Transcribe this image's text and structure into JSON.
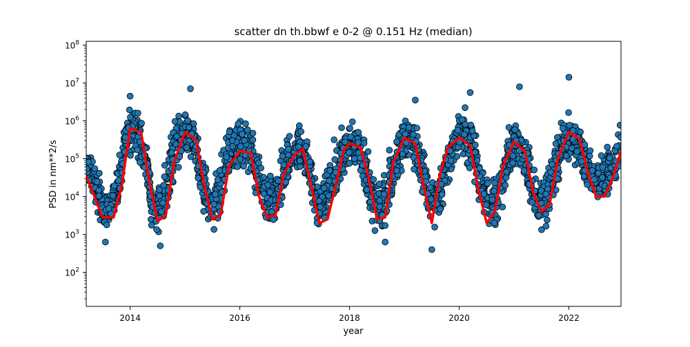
{
  "chart_data": {
    "type": "scatter",
    "title": "scatter dn th.bbwf e 0-2 @ 0.151 Hz (median)",
    "xlabel": "year",
    "ylabel": "PSD in nm**2/s",
    "xlim": [
      2013.2,
      2022.95
    ],
    "ylim_log10": [
      1.1,
      8.1
    ],
    "yscale": "log",
    "grid": false,
    "x_ticks": [
      {
        "value": 2014,
        "label": "2014"
      },
      {
        "value": 2016,
        "label": "2016"
      },
      {
        "value": 2018,
        "label": "2018"
      },
      {
        "value": 2020,
        "label": "2020"
      },
      {
        "value": 2022,
        "label": "2022"
      }
    ],
    "y_ticks": [
      {
        "exp": 2,
        "base": "10",
        "sup": "2"
      },
      {
        "exp": 3,
        "base": "10",
        "sup": "3"
      },
      {
        "exp": 4,
        "base": "10",
        "sup": "4"
      },
      {
        "exp": 5,
        "base": "10",
        "sup": "5"
      },
      {
        "exp": 6,
        "base": "10",
        "sup": "6"
      },
      {
        "exp": 7,
        "base": "10",
        "sup": "7"
      },
      {
        "exp": 8,
        "base": "10",
        "sup": "8"
      }
    ],
    "scatter_color": "#1f77b4",
    "scatter_edge": "#000000",
    "median_color": "#ff0000",
    "median_line": {
      "x": [
        2013.2,
        2013.35,
        2013.5,
        2013.7,
        2013.85,
        2014.0,
        2014.2,
        2014.35,
        2014.5,
        2014.65,
        2014.8,
        2015.0,
        2015.2,
        2015.35,
        2015.5,
        2015.65,
        2015.8,
        2016.0,
        2016.2,
        2016.35,
        2016.5,
        2016.65,
        2016.8,
        2017.0,
        2017.15,
        2017.3,
        2017.45,
        2017.6,
        2017.75,
        2017.9,
        2018.0,
        2018.2,
        2018.35,
        2018.5,
        2018.65,
        2018.8,
        2019.0,
        2019.2,
        2019.35,
        2019.5,
        2019.65,
        2019.8,
        2020.0,
        2020.2,
        2020.35,
        2020.5,
        2020.65,
        2020.8,
        2021.0,
        2021.2,
        2021.35,
        2021.5,
        2021.65,
        2021.8,
        2022.0,
        2022.2,
        2022.35,
        2022.5,
        2022.65,
        2022.8,
        2022.95
      ],
      "log10_psd": [
        4.55,
        4.0,
        3.45,
        3.45,
        4.3,
        5.8,
        5.7,
        4.4,
        3.35,
        3.5,
        4.9,
        5.7,
        5.5,
        4.3,
        3.4,
        3.5,
        4.8,
        5.2,
        5.15,
        4.0,
        3.45,
        3.5,
        4.6,
        5.1,
        5.25,
        4.3,
        3.3,
        3.4,
        4.3,
        5.25,
        5.4,
        5.3,
        4.5,
        3.4,
        3.45,
        4.9,
        5.55,
        5.4,
        4.3,
        3.3,
        4.6,
        5.3,
        5.55,
        5.35,
        4.2,
        3.3,
        3.6,
        4.8,
        5.45,
        5.2,
        4.1,
        3.6,
        3.8,
        5.0,
        5.7,
        5.5,
        4.6,
        4.0,
        4.0,
        4.5,
        5.2
      ]
    },
    "seasonal_envelope": {
      "x": [
        2013.2,
        2013.35,
        2013.5,
        2013.65,
        2013.8,
        2013.95,
        2014.1,
        2014.25,
        2014.4,
        2014.55,
        2014.7,
        2014.85,
        2015.0,
        2015.15,
        2015.3,
        2015.45,
        2015.6,
        2015.75,
        2015.9,
        2016.05,
        2016.2,
        2016.35,
        2016.5,
        2016.65,
        2016.8,
        2016.95,
        2017.1,
        2017.25,
        2017.4,
        2017.55,
        2017.7,
        2017.85,
        2018.0,
        2018.15,
        2018.3,
        2018.45,
        2018.6,
        2018.75,
        2018.9,
        2019.05,
        2019.2,
        2019.35,
        2019.5,
        2019.65,
        2019.8,
        2019.95,
        2020.1,
        2020.25,
        2020.4,
        2020.55,
        2020.7,
        2020.85,
        2021.0,
        2021.15,
        2021.3,
        2021.45,
        2021.6,
        2021.75,
        2021.9,
        2022.05,
        2022.2,
        2022.35,
        2022.5,
        2022.65,
        2022.8,
        2022.95
      ],
      "log10_low": [
        4.3,
        3.6,
        2.9,
        2.9,
        3.5,
        4.8,
        5.0,
        4.4,
        3.0,
        2.8,
        3.3,
        4.4,
        4.9,
        4.6,
        3.6,
        2.9,
        3.0,
        3.8,
        4.5,
        4.6,
        4.3,
        3.5,
        3.0,
        3.0,
        3.6,
        4.3,
        4.5,
        4.0,
        3.1,
        3.0,
        3.4,
        4.1,
        4.6,
        4.5,
        3.9,
        3.0,
        2.8,
        3.4,
        4.3,
        4.8,
        4.6,
        3.6,
        2.7,
        3.2,
        4.0,
        4.7,
        4.8,
        4.3,
        3.4,
        2.9,
        3.0,
        3.9,
        4.7,
        4.4,
        3.6,
        3.0,
        3.0,
        3.8,
        4.7,
        4.8,
        4.4,
        3.8,
        3.6,
        3.6,
        3.9,
        4.4
      ],
      "log10_high": [
        5.3,
        5.4,
        4.3,
        4.5,
        5.4,
        6.5,
        6.5,
        6.1,
        4.6,
        4.5,
        5.7,
        6.4,
        6.6,
        6.3,
        5.5,
        4.5,
        5.0,
        5.8,
        6.2,
        6.3,
        6.1,
        5.5,
        4.5,
        4.9,
        5.7,
        6.0,
        6.1,
        5.6,
        4.5,
        4.8,
        5.6,
        6.0,
        6.2,
        6.0,
        5.5,
        4.7,
        4.7,
        5.6,
        6.1,
        6.2,
        6.1,
        5.4,
        4.6,
        5.1,
        5.9,
        6.3,
        6.6,
        6.1,
        5.3,
        4.6,
        4.9,
        5.9,
        6.3,
        6.0,
        5.4,
        4.8,
        5.0,
        5.8,
        6.3,
        6.4,
        6.1,
        5.6,
        5.2,
        5.3,
        5.8,
        6.3
      ]
    },
    "outlier_points": [
      {
        "x": 2022.0,
        "log10_psd": 7.15
      },
      {
        "x": 2021.1,
        "log10_psd": 6.9
      },
      {
        "x": 2015.1,
        "log10_psd": 6.85
      },
      {
        "x": 2020.2,
        "log10_psd": 6.75
      },
      {
        "x": 2014.0,
        "log10_psd": 6.65
      },
      {
        "x": 2019.2,
        "log10_psd": 6.55
      },
      {
        "x": 2019.5,
        "log10_psd": 2.6
      },
      {
        "x": 2014.55,
        "log10_psd": 2.7
      },
      {
        "x": 2018.65,
        "log10_psd": 2.8
      },
      {
        "x": 2013.55,
        "log10_psd": 2.8
      }
    ]
  }
}
